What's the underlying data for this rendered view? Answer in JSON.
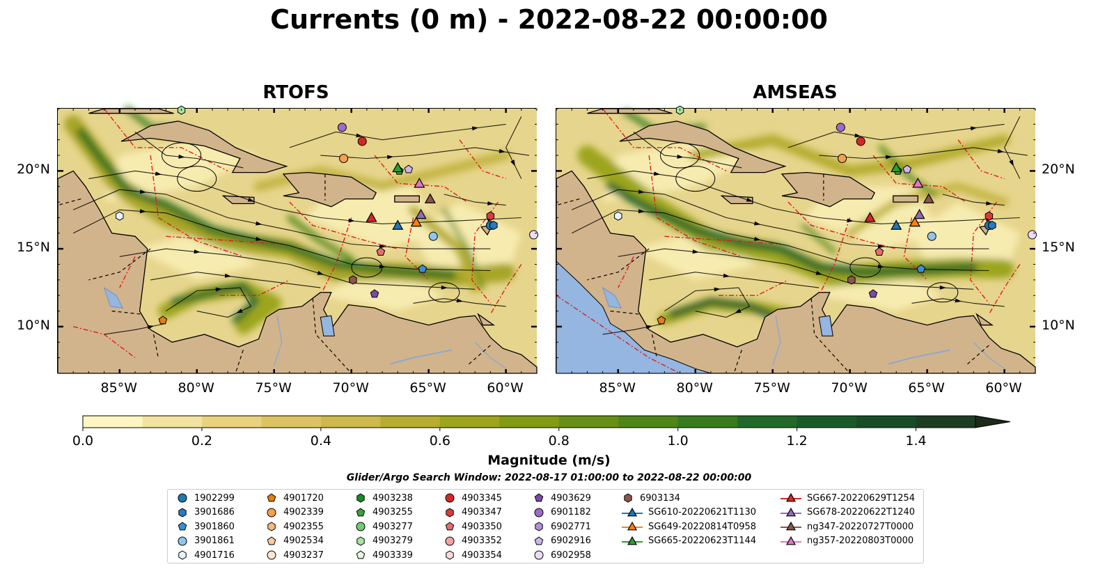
{
  "title": "Currents (0 m) - 2022-08-22 00:00:00",
  "chart_data": {
    "type": "heatmap",
    "title": "Currents (0 m) - 2022-08-22 00:00:00",
    "panels": [
      {
        "title": "RTOFS",
        "xlim": [
          -89,
          -58
        ],
        "ylim": [
          7,
          24
        ]
      },
      {
        "title": "AMSEAS",
        "xlim": [
          -89,
          -58
        ],
        "ylim": [
          7,
          24
        ]
      }
    ],
    "x_ticks": [
      -85,
      -80,
      -75,
      -70,
      -65,
      -60
    ],
    "x_tick_labels": [
      "85°W",
      "80°W",
      "75°W",
      "70°W",
      "65°W",
      "60°W"
    ],
    "y_ticks": [
      10,
      15,
      20
    ],
    "y_tick_labels": [
      "10°N",
      "15°N",
      "20°N"
    ],
    "colorbar": {
      "label": "Magnitude (m/s)",
      "min": 0.0,
      "max": 1.5,
      "step": 0.1,
      "extend": "max",
      "ticks": [
        0.0,
        0.2,
        0.4,
        0.6,
        0.8,
        1.0,
        1.2,
        1.4
      ],
      "tick_labels": [
        "0.0",
        "0.2",
        "0.4",
        "0.6",
        "0.8",
        "1.0",
        "1.2",
        "1.4"
      ],
      "colors": [
        "#fdf6c3",
        "#f3e3a0",
        "#e8d27f",
        "#ddc363",
        "#cdb94c",
        "#b6ad31",
        "#9ca51c",
        "#829b12",
        "#688f15",
        "#4f8519",
        "#387a1e",
        "#22682a",
        "#1a5a2a",
        "#174c27",
        "#1d3d22",
        "#1b2b18"
      ]
    },
    "search_window": "Glider/Argo Search Window: 2022-08-17 01:00:00 to 2022-08-22 00:00:00",
    "legend": [
      {
        "label": "1902299",
        "marker": "circle",
        "color": "#1f77b4"
      },
      {
        "label": "3901686",
        "marker": "hexagon",
        "color": "#2b7bba"
      },
      {
        "label": "3901860",
        "marker": "pentagon",
        "color": "#3a8fd6"
      },
      {
        "label": "3901861",
        "marker": "circle",
        "color": "#92c5ea"
      },
      {
        "label": "4901716",
        "marker": "hexagon",
        "color": "#e6f3fb"
      },
      {
        "label": "4901720",
        "marker": "pentagon",
        "color": "#e67e0e"
      },
      {
        "label": "4902339",
        "marker": "circle",
        "color": "#f5a04e"
      },
      {
        "label": "4902355",
        "marker": "hexagon",
        "color": "#f8b878"
      },
      {
        "label": "4902534",
        "marker": "pentagon",
        "color": "#fbcc9e"
      },
      {
        "label": "4903237",
        "marker": "circle",
        "color": "#fde7d3"
      },
      {
        "label": "4903238",
        "marker": "hexagon",
        "color": "#1a8a28"
      },
      {
        "label": "4903255",
        "marker": "pentagon",
        "color": "#3ca043"
      },
      {
        "label": "4903277",
        "marker": "circle",
        "color": "#6ccf6c"
      },
      {
        "label": "4903279",
        "marker": "hexagon",
        "color": "#a4e3a0"
      },
      {
        "label": "4903339",
        "marker": "pentagon",
        "color": "#e3f7dd"
      },
      {
        "label": "4903345",
        "marker": "circle",
        "color": "#d62728"
      },
      {
        "label": "4903347",
        "marker": "hexagon",
        "color": "#dd3b3b"
      },
      {
        "label": "4903350",
        "marker": "pentagon",
        "color": "#e86d6d"
      },
      {
        "label": "4903352",
        "marker": "circle",
        "color": "#f4a3a3"
      },
      {
        "label": "4903354",
        "marker": "hexagon",
        "color": "#fbdada"
      },
      {
        "label": "4903629",
        "marker": "pentagon",
        "color": "#7a4aa8"
      },
      {
        "label": "6901182",
        "marker": "circle",
        "color": "#9b6cc8"
      },
      {
        "label": "6902771",
        "marker": "hexagon",
        "color": "#b38fdb"
      },
      {
        "label": "6902916",
        "marker": "pentagon",
        "color": "#ceb6ec"
      },
      {
        "label": "6902958",
        "marker": "circle",
        "color": "#ecdcf8"
      },
      {
        "label": "6903134",
        "marker": "hexagon",
        "color": "#8c564b"
      },
      {
        "label": "SG610-20220621T1130",
        "marker": "triangle-line",
        "color": "#1f77b4"
      },
      {
        "label": "SG649-20220814T0958",
        "marker": "triangle-line",
        "color": "#ff7f0e"
      },
      {
        "label": "SG665-20220623T1144",
        "marker": "triangle-line",
        "color": "#2ca02c"
      },
      {
        "label": "SG667-20220629T1254",
        "marker": "triangle-line",
        "color": "#d62728"
      },
      {
        "label": "SG678-20220622T1240",
        "marker": "triangle-line",
        "color": "#9467bd"
      },
      {
        "label": "ng347-20220727T0000",
        "marker": "triangle-line",
        "color": "#8c564b"
      },
      {
        "label": "ng357-20220803T0000",
        "marker": "triangle-line",
        "color": "#e377c2"
      }
    ],
    "observations": [
      {
        "id": "1902299",
        "lon": -61.0,
        "lat": 16.5
      },
      {
        "id": "3901686",
        "lon": -60.8,
        "lat": 16.5
      },
      {
        "id": "3901860",
        "lon": -65.4,
        "lat": 13.7
      },
      {
        "id": "3901861",
        "lon": -64.7,
        "lat": 15.8
      },
      {
        "id": "4901716",
        "lon": -85.0,
        "lat": 17.1
      },
      {
        "id": "4901720",
        "lon": -82.2,
        "lat": 10.4
      },
      {
        "id": "4902339",
        "lon": -70.5,
        "lat": 20.8
      },
      {
        "id": "4903255",
        "lon": -66.9,
        "lat": 20.0
      },
      {
        "id": "4903279",
        "lon": -81.0,
        "lat": 23.9
      },
      {
        "id": "4903345",
        "lon": -69.3,
        "lat": 21.9
      },
      {
        "id": "4903347",
        "lon": -61.0,
        "lat": 17.1
      },
      {
        "id": "4903350",
        "lon": -68.1,
        "lat": 14.8
      },
      {
        "id": "4903629",
        "lon": -68.5,
        "lat": 12.1
      },
      {
        "id": "6901182",
        "lon": -70.6,
        "lat": 22.8
      },
      {
        "id": "6902916",
        "lon": -66.3,
        "lat": 20.1
      },
      {
        "id": "6902958",
        "lon": -58.2,
        "lat": 15.9
      },
      {
        "id": "6903134",
        "lon": -69.9,
        "lat": 13.0
      },
      {
        "id": "SG610-20220621T1130",
        "lon": -67.0,
        "lat": 16.5
      },
      {
        "id": "SG649-20220814T0958",
        "lon": -65.8,
        "lat": 16.7
      },
      {
        "id": "SG665-20220623T1144",
        "lon": -67.0,
        "lat": 20.2
      },
      {
        "id": "SG667-20220629T1254",
        "lon": -68.7,
        "lat": 17.0
      },
      {
        "id": "SG678-20220622T1240",
        "lon": -65.5,
        "lat": 17.2
      },
      {
        "id": "ng347-20220727T0000",
        "lon": -64.9,
        "lat": 18.2
      },
      {
        "id": "ng357-20220803T0000",
        "lon": -65.6,
        "lat": 19.2
      }
    ]
  }
}
